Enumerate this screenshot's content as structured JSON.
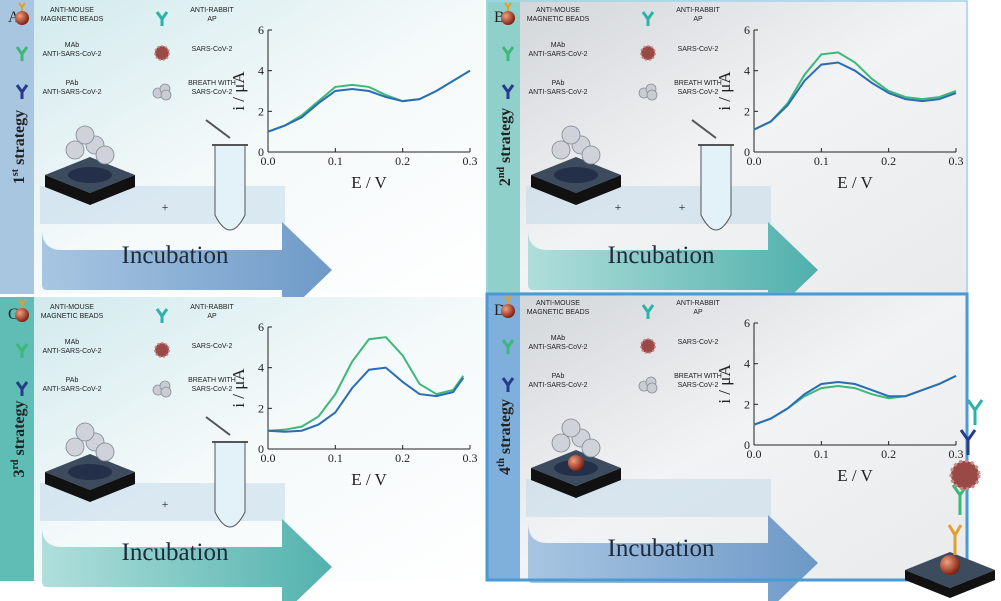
{
  "panels": [
    {
      "letter": "A",
      "ordinal": "1",
      "suffix": "st",
      "word": "strategy"
    },
    {
      "letter": "B",
      "ordinal": "2",
      "suffix": "nd",
      "word": "strategy"
    },
    {
      "letter": "C",
      "ordinal": "3",
      "suffix": "rd",
      "word": "strategy"
    },
    {
      "letter": "D",
      "ordinal": "4",
      "suffix": "th",
      "word": "strategy"
    }
  ],
  "legend": [
    {
      "lines": [
        "ANTI-MOUSE",
        "MAGNETIC BEADS"
      ]
    },
    {
      "lines": [
        "ANTI-RABBIT",
        "AP"
      ]
    },
    {
      "lines": [
        "MAb",
        "ANTI-SARS-CoV-2"
      ]
    },
    {
      "lines": [
        "SARS-CoV-2"
      ]
    },
    {
      "lines": [
        "PAb",
        "ANTI-SARS-CoV-2"
      ]
    },
    {
      "lines": [
        "BREATH WITH",
        "SARS-CoV-2"
      ]
    }
  ],
  "incubation_label": "Incubation",
  "plus_sign": "+",
  "chart_data": [
    {
      "type": "line",
      "x_label": "E / V",
      "y_label": "i / μA",
      "x": [
        0,
        0.025,
        0.05,
        0.075,
        0.1,
        0.125,
        0.15,
        0.175,
        0.2,
        0.225,
        0.25,
        0.275,
        0.3
      ],
      "xlim": [
        0,
        0.3
      ],
      "xticks": [
        {
          "value": 0,
          "label": "0.0"
        },
        0.1,
        0.2,
        0.3
      ],
      "ylim": [
        0,
        6
      ],
      "yticks": [
        0,
        2,
        4,
        6
      ],
      "series": [
        {
          "color": "#3cb878",
          "values": [
            1.0,
            1.3,
            1.8,
            2.5,
            3.2,
            3.3,
            3.2,
            2.8,
            2.5,
            2.6,
            3.0,
            3.5,
            4.0
          ]
        },
        {
          "color": "#2a6db5",
          "values": [
            1.0,
            1.3,
            1.7,
            2.4,
            3.0,
            3.1,
            3.0,
            2.7,
            2.5,
            2.6,
            3.0,
            3.5,
            4.0
          ]
        }
      ]
    },
    {
      "type": "line",
      "x_label": "E / V",
      "y_label": "i / μA",
      "x": [
        0,
        0.025,
        0.05,
        0.075,
        0.1,
        0.125,
        0.15,
        0.175,
        0.2,
        0.225,
        0.25,
        0.275,
        0.3
      ],
      "xlim": [
        0,
        0.3
      ],
      "xticks": [
        {
          "value": 0,
          "label": "0.0"
        },
        0.1,
        0.2,
        0.3
      ],
      "ylim": [
        0,
        6
      ],
      "yticks": [
        0,
        2,
        4,
        6
      ],
      "series": [
        {
          "color": "#3cb878",
          "values": [
            1.1,
            1.5,
            2.4,
            3.8,
            4.8,
            4.9,
            4.4,
            3.6,
            3.0,
            2.7,
            2.6,
            2.7,
            3.0
          ]
        },
        {
          "color": "#2a6db5",
          "values": [
            1.1,
            1.5,
            2.3,
            3.5,
            4.3,
            4.4,
            4.0,
            3.4,
            2.9,
            2.6,
            2.5,
            2.6,
            2.9
          ]
        }
      ]
    },
    {
      "type": "line",
      "x_label": "E / V",
      "y_label": "i / μA",
      "x": [
        0,
        0.025,
        0.05,
        0.075,
        0.1,
        0.125,
        0.15,
        0.175,
        0.2,
        0.225,
        0.25,
        0.275,
        0.29
      ],
      "xlim": [
        0,
        0.3
      ],
      "xticks": [
        {
          "value": 0,
          "label": "0.0"
        },
        0.1,
        0.2,
        0.3
      ],
      "ylim": [
        0,
        6
      ],
      "yticks": [
        0,
        2,
        4,
        6
      ],
      "series": [
        {
          "color": "#3cb878",
          "values": [
            0.9,
            0.95,
            1.1,
            1.6,
            2.7,
            4.3,
            5.4,
            5.5,
            4.6,
            3.2,
            2.7,
            2.9,
            3.6
          ]
        },
        {
          "color": "#2a6db5",
          "values": [
            0.9,
            0.85,
            0.9,
            1.2,
            1.8,
            3.0,
            3.9,
            4.0,
            3.3,
            2.7,
            2.6,
            2.8,
            3.5
          ]
        }
      ]
    },
    {
      "type": "line",
      "x_label": "E / V",
      "y_label": "i / μA",
      "x": [
        0,
        0.025,
        0.05,
        0.075,
        0.1,
        0.125,
        0.15,
        0.175,
        0.2,
        0.225,
        0.25,
        0.275,
        0.3
      ],
      "xlim": [
        0,
        0.3
      ],
      "xticks": [
        {
          "value": 0,
          "label": "0.0"
        },
        0.1,
        0.2,
        0.3
      ],
      "ylim": [
        0,
        6
      ],
      "yticks": [
        0,
        2,
        4,
        6
      ],
      "series": [
        {
          "color": "#3cb878",
          "values": [
            1.0,
            1.3,
            1.8,
            2.4,
            2.8,
            2.9,
            2.8,
            2.5,
            2.3,
            2.4,
            2.7,
            3.0,
            3.4
          ]
        },
        {
          "color": "#2a6db5",
          "values": [
            1.0,
            1.3,
            1.8,
            2.5,
            3.0,
            3.1,
            3.0,
            2.7,
            2.4,
            2.4,
            2.7,
            3.0,
            3.4
          ]
        }
      ]
    }
  ]
}
